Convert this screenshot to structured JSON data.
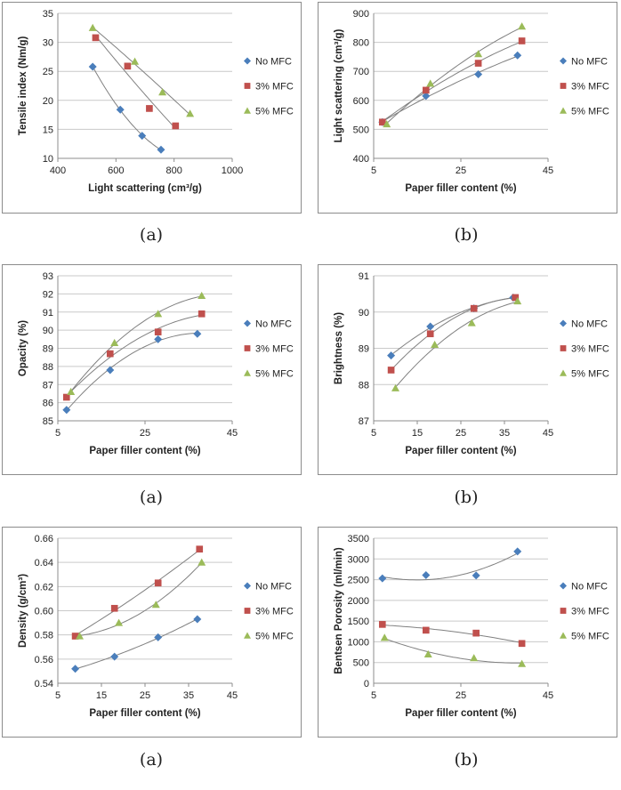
{
  "chart_data": [
    {
      "type": "line",
      "xlabel": "Light scattering (cm³/g)",
      "ylabel": "Tensile index (Nm/g)",
      "xlim": [
        400,
        1000
      ],
      "xticks": [
        400,
        600,
        800,
        1000
      ],
      "ylim": [
        10,
        35
      ],
      "yticks": [
        10,
        15,
        20,
        25,
        30,
        35
      ],
      "grid": true,
      "legend": "right",
      "subfigure": "(a)",
      "series": [
        {
          "name": "No MFC",
          "color": "#4a7ebb",
          "marker": "diamond",
          "points": [
            [
              520,
              25.8
            ],
            [
              615,
              18.4
            ],
            [
              690,
              13.9
            ],
            [
              755,
              11.5
            ]
          ]
        },
        {
          "name": "3% MFC",
          "color": "#c0504d",
          "marker": "square",
          "points": [
            [
              530,
              30.8
            ],
            [
              640,
              25.9
            ],
            [
              715,
              18.6
            ],
            [
              805,
              15.6
            ]
          ]
        },
        {
          "name": "5% MFC",
          "color": "#9bbb59",
          "marker": "triangle",
          "points": [
            [
              520,
              32.5
            ],
            [
              665,
              26.7
            ],
            [
              760,
              21.4
            ],
            [
              855,
              17.7
            ]
          ]
        }
      ]
    },
    {
      "type": "line",
      "xlabel": "Paper filler content (%)",
      "ylabel": "Light scattering (cm³/g)",
      "xlim": [
        5,
        45
      ],
      "xticks": [
        5,
        25,
        45
      ],
      "ylim": [
        400,
        900
      ],
      "yticks": [
        400,
        500,
        600,
        700,
        800,
        900
      ],
      "grid": true,
      "legend": "right",
      "subfigure": "(b)",
      "series": [
        {
          "name": "No MFC",
          "color": "#4a7ebb",
          "marker": "diamond",
          "points": [
            [
              7,
              525
            ],
            [
              17,
              615
            ],
            [
              29,
              690
            ],
            [
              38,
              755
            ]
          ]
        },
        {
          "name": "3% MFC",
          "color": "#c0504d",
          "marker": "square",
          "points": [
            [
              7,
              525
            ],
            [
              17,
              635
            ],
            [
              29,
              728
            ],
            [
              39,
              805
            ]
          ]
        },
        {
          "name": "5% MFC",
          "color": "#9bbb59",
          "marker": "triangle",
          "points": [
            [
              8,
              518
            ],
            [
              18,
              658
            ],
            [
              29,
              760
            ],
            [
              39,
              855
            ]
          ]
        }
      ]
    },
    {
      "type": "line",
      "xlabel": "Paper filler content (%)",
      "ylabel": "Opacity (%)",
      "xlim": [
        5,
        45
      ],
      "xticks": [
        5,
        25,
        45
      ],
      "ylim": [
        85,
        93
      ],
      "yticks": [
        85,
        86,
        87,
        88,
        89,
        90,
        91,
        92,
        93
      ],
      "grid": true,
      "legend": "right",
      "subfigure": "(a)",
      "series": [
        {
          "name": "No MFC",
          "color": "#4a7ebb",
          "marker": "diamond",
          "points": [
            [
              7,
              85.6
            ],
            [
              17,
              87.8
            ],
            [
              28,
              89.5
            ],
            [
              37,
              89.8
            ]
          ]
        },
        {
          "name": "3% MFC",
          "color": "#c0504d",
          "marker": "square",
          "points": [
            [
              7,
              86.3
            ],
            [
              17,
              88.7
            ],
            [
              28,
              89.9
            ],
            [
              38,
              90.9
            ]
          ]
        },
        {
          "name": "5% MFC",
          "color": "#9bbb59",
          "marker": "triangle",
          "points": [
            [
              8,
              86.6
            ],
            [
              18,
              89.3
            ],
            [
              28,
              90.9
            ],
            [
              38,
              91.9
            ]
          ]
        }
      ]
    },
    {
      "type": "line",
      "xlabel": "Paper filler content (%)",
      "ylabel": "Brightness (%)",
      "xlim": [
        5,
        45
      ],
      "xticks": [
        5,
        15,
        25,
        35,
        45
      ],
      "ylim": [
        87,
        91
      ],
      "yticks": [
        87,
        88,
        89,
        90,
        91
      ],
      "grid": true,
      "legend": "right",
      "subfigure": "(b)",
      "series": [
        {
          "name": "No MFC",
          "color": "#4a7ebb",
          "marker": "diamond",
          "points": [
            [
              9,
              88.8
            ],
            [
              18,
              89.6
            ],
            [
              28,
              90.1
            ],
            [
              37,
              90.4
            ]
          ]
        },
        {
          "name": "3% MFC",
          "color": "#c0504d",
          "marker": "square",
          "points": [
            [
              9,
              88.4
            ],
            [
              18,
              89.4
            ],
            [
              28,
              90.1
            ],
            [
              37.5,
              90.4
            ]
          ]
        },
        {
          "name": "5% MFC",
          "color": "#9bbb59",
          "marker": "triangle",
          "points": [
            [
              10,
              87.9
            ],
            [
              19,
              89.1
            ],
            [
              27.5,
              89.7
            ],
            [
              38,
              90.3
            ]
          ]
        }
      ]
    },
    {
      "type": "line",
      "xlabel": "Paper filler content (%)",
      "ylabel": "Density (g/cm³)",
      "xlim": [
        5,
        45
      ],
      "xticks": [
        5,
        15,
        25,
        35,
        45
      ],
      "ylim": [
        0.54,
        0.66
      ],
      "yticks": [
        0.54,
        0.56,
        0.58,
        0.6,
        0.62,
        0.64,
        0.66
      ],
      "ytick_labels": [
        "0.54",
        "0.56",
        "0.58",
        "0.60",
        "0.62",
        "0.64",
        "0.66"
      ],
      "grid": true,
      "legend": "right",
      "subfigure": "(a)",
      "series": [
        {
          "name": "No MFC",
          "color": "#4a7ebb",
          "marker": "diamond",
          "points": [
            [
              9,
              0.552
            ],
            [
              18,
              0.562
            ],
            [
              28,
              0.578
            ],
            [
              37,
              0.593
            ]
          ]
        },
        {
          "name": "3% MFC",
          "color": "#c0504d",
          "marker": "square",
          "points": [
            [
              9,
              0.579
            ],
            [
              18,
              0.602
            ],
            [
              28,
              0.623
            ],
            [
              37.5,
              0.651
            ]
          ]
        },
        {
          "name": "5% MFC",
          "color": "#9bbb59",
          "marker": "triangle",
          "points": [
            [
              10,
              0.579
            ],
            [
              19,
              0.59
            ],
            [
              27.5,
              0.605
            ],
            [
              38,
              0.64
            ]
          ]
        }
      ]
    },
    {
      "type": "line",
      "xlabel": "Paper filler content (%)",
      "ylabel": "Bentsen Porosity (ml/min)",
      "xlim": [
        5,
        45
      ],
      "xticks": [
        5,
        25,
        45
      ],
      "ylim": [
        0,
        3500
      ],
      "yticks": [
        0,
        500,
        1000,
        1500,
        2000,
        2500,
        3000,
        3500
      ],
      "grid": true,
      "legend": "right",
      "subfigure": "(b)",
      "series": [
        {
          "name": "No MFC",
          "color": "#4a7ebb",
          "marker": "diamond",
          "points": [
            [
              7,
              2530
            ],
            [
              17,
              2610
            ],
            [
              28.5,
              2600
            ],
            [
              38,
              3180
            ]
          ]
        },
        {
          "name": "3% MFC",
          "color": "#c0504d",
          "marker": "square",
          "points": [
            [
              7,
              1420
            ],
            [
              17,
              1280
            ],
            [
              28.5,
              1210
            ],
            [
              39,
              960
            ]
          ]
        },
        {
          "name": "5% MFC",
          "color": "#9bbb59",
          "marker": "triangle",
          "points": [
            [
              7.5,
              1100
            ],
            [
              17.5,
              700
            ],
            [
              28,
              610
            ],
            [
              39,
              470
            ]
          ]
        }
      ]
    }
  ]
}
